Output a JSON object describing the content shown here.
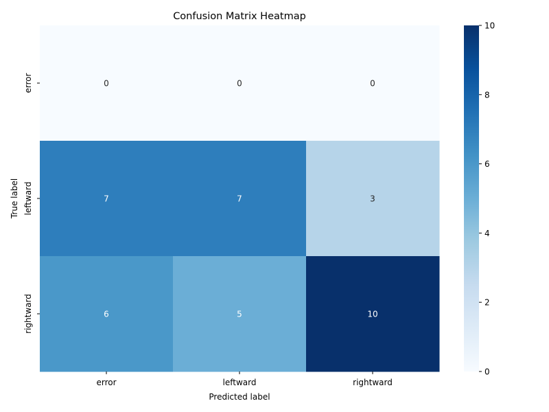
{
  "chart_data": {
    "type": "heatmap",
    "title": "Confusion Matrix Heatmap",
    "xlabel": "Predicted label",
    "ylabel": "True label",
    "x_categories": [
      "error",
      "leftward",
      "rightward"
    ],
    "y_categories": [
      "error",
      "leftward",
      "rightward"
    ],
    "values": [
      [
        0,
        0,
        0
      ],
      [
        7,
        7,
        3
      ],
      [
        6,
        5,
        10
      ]
    ],
    "colorbar": {
      "min": 0,
      "max": 10,
      "ticks": [
        "0",
        "2",
        "4",
        "6",
        "8",
        "10"
      ],
      "colormap": "Blues"
    }
  }
}
